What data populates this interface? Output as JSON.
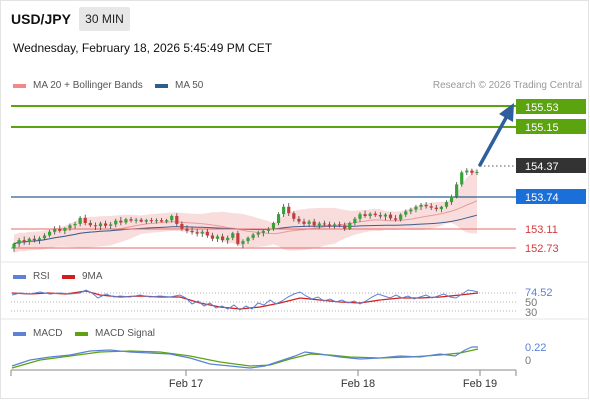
{
  "header": {
    "pair": "USD/JPY",
    "timeframe": "30 MIN",
    "datetime": "Wednesday, February 18, 2026 5:45:49 PM CET",
    "copyright": "Research © 2026 Trading Central"
  },
  "legend": {
    "ma20": "MA 20 + Bollinger Bands",
    "ma50": "MA 50",
    "rsi": "RSI",
    "rsi_ma": "9MA",
    "macd": "MACD",
    "macd_signal": "MACD Signal"
  },
  "levels": {
    "resistance_2": "155.53",
    "resistance_1": "155.15",
    "last": "154.37",
    "pivot": "153.74",
    "support_1": "153.11",
    "support_2": "152.73"
  },
  "rsi_labels": {
    "current": "74.52",
    "mid": "50",
    "low": "30"
  },
  "macd_labels": {
    "current": "0.22",
    "zero": "0"
  },
  "colors": {
    "green": "#5ba30f",
    "blue_line": "#2d5f8e",
    "red_line": "#e66a6a",
    "arrow": "#2e5f9c",
    "last_box": "#333333",
    "pivot_box": "#1a6fd8",
    "candle_up": "#36a336",
    "candle_down": "#c83a3a",
    "band_fill": "#f6cfcf",
    "ma20": "#e99a9a",
    "ma50": "#3a5d8f",
    "rsi": "#5b82d4",
    "rsi_ma": "#d21e1e",
    "macd": "#5b82d4",
    "macd_signal": "#5ba30f"
  },
  "chart_data": {
    "type": "candlestick",
    "title": "USD/JPY 30 MIN",
    "x_ticks": [
      "Feb 17",
      "Feb 18",
      "Feb 19"
    ],
    "ylim": [
      152.58,
      155.92
    ],
    "candles": [
      [
        152.72,
        152.85,
        152.65,
        152.82
      ],
      [
        152.82,
        152.95,
        152.75,
        152.9
      ],
      [
        152.9,
        152.98,
        152.8,
        152.86
      ],
      [
        152.86,
        152.96,
        152.8,
        152.93
      ],
      [
        152.93,
        153.0,
        152.85,
        152.9
      ],
      [
        152.9,
        152.98,
        152.82,
        152.94
      ],
      [
        152.94,
        153.05,
        152.9,
        153.0
      ],
      [
        153.0,
        153.12,
        152.96,
        153.08
      ],
      [
        153.08,
        153.2,
        153.02,
        153.14
      ],
      [
        153.14,
        153.22,
        153.06,
        153.1
      ],
      [
        153.1,
        153.18,
        153.03,
        153.16
      ],
      [
        153.16,
        153.26,
        153.1,
        153.22
      ],
      [
        153.22,
        153.3,
        153.15,
        153.25
      ],
      [
        153.25,
        153.42,
        153.2,
        153.38
      ],
      [
        153.38,
        153.45,
        153.22,
        153.27
      ],
      [
        153.27,
        153.33,
        153.18,
        153.22
      ],
      [
        153.22,
        153.28,
        153.12,
        153.2
      ],
      [
        153.2,
        153.3,
        153.12,
        153.26
      ],
      [
        153.26,
        153.32,
        153.16,
        153.21
      ],
      [
        153.21,
        153.29,
        153.14,
        153.24
      ],
      [
        153.24,
        153.36,
        153.18,
        153.32
      ],
      [
        153.32,
        153.4,
        153.22,
        153.28
      ],
      [
        153.28,
        153.38,
        153.24,
        153.35
      ],
      [
        153.35,
        153.4,
        153.28,
        153.32
      ],
      [
        153.32,
        153.38,
        153.26,
        153.34
      ],
      [
        153.34,
        153.38,
        153.28,
        153.3
      ],
      [
        153.3,
        153.36,
        153.25,
        153.33
      ],
      [
        153.33,
        153.38,
        153.27,
        153.31
      ],
      [
        153.31,
        153.37,
        153.26,
        153.33
      ],
      [
        153.33,
        153.38,
        153.28,
        153.3
      ],
      [
        153.3,
        153.36,
        153.26,
        153.33
      ],
      [
        153.33,
        153.45,
        153.28,
        153.42
      ],
      [
        153.42,
        153.48,
        153.2,
        153.25
      ],
      [
        153.25,
        153.3,
        153.1,
        153.15
      ],
      [
        153.15,
        153.22,
        153.05,
        153.1
      ],
      [
        153.1,
        153.18,
        153.02,
        153.07
      ],
      [
        153.07,
        153.14,
        152.98,
        153.04
      ],
      [
        153.04,
        153.12,
        152.97,
        153.08
      ],
      [
        153.08,
        153.14,
        152.95,
        153.0
      ],
      [
        153.0,
        153.06,
        152.88,
        152.93
      ],
      [
        152.93,
        153.02,
        152.86,
        152.98
      ],
      [
        152.98,
        153.04,
        152.85,
        152.9
      ],
      [
        152.9,
        153.0,
        152.82,
        152.95
      ],
      [
        152.95,
        153.08,
        152.9,
        153.05
      ],
      [
        153.05,
        153.1,
        152.78,
        152.82
      ],
      [
        152.82,
        152.92,
        152.72,
        152.88
      ],
      [
        152.88,
        152.98,
        152.82,
        152.95
      ],
      [
        152.95,
        153.05,
        152.9,
        153.02
      ],
      [
        153.02,
        153.1,
        152.96,
        153.06
      ],
      [
        153.06,
        153.12,
        152.98,
        153.1
      ],
      [
        153.1,
        153.18,
        153.05,
        153.15
      ],
      [
        153.15,
        153.3,
        153.1,
        153.27
      ],
      [
        153.27,
        153.5,
        153.22,
        153.46
      ],
      [
        153.46,
        153.68,
        153.4,
        153.62
      ],
      [
        153.62,
        153.7,
        153.42,
        153.48
      ],
      [
        153.48,
        153.52,
        153.3,
        153.36
      ],
      [
        153.36,
        153.42,
        153.25,
        153.3
      ],
      [
        153.3,
        153.36,
        153.2,
        153.25
      ],
      [
        153.25,
        153.34,
        153.18,
        153.3
      ],
      [
        153.3,
        153.36,
        153.18,
        153.22
      ],
      [
        153.22,
        153.3,
        153.15,
        153.26
      ],
      [
        153.26,
        153.32,
        153.2,
        153.24
      ],
      [
        153.24,
        153.3,
        153.16,
        153.2
      ],
      [
        153.2,
        153.28,
        153.15,
        153.24
      ],
      [
        153.24,
        153.3,
        153.18,
        153.22
      ],
      [
        153.22,
        153.28,
        153.1,
        153.15
      ],
      [
        153.15,
        153.3,
        153.12,
        153.27
      ],
      [
        153.27,
        153.4,
        153.22,
        153.36
      ],
      [
        153.36,
        153.5,
        153.3,
        153.46
      ],
      [
        153.46,
        153.54,
        153.38,
        153.42
      ],
      [
        153.42,
        153.5,
        153.36,
        153.47
      ],
      [
        153.47,
        153.52,
        153.4,
        153.44
      ],
      [
        153.44,
        153.5,
        153.36,
        153.41
      ],
      [
        153.41,
        153.48,
        153.33,
        153.45
      ],
      [
        153.45,
        153.5,
        153.33,
        153.37
      ],
      [
        153.37,
        153.44,
        153.3,
        153.34
      ],
      [
        153.34,
        153.48,
        153.3,
        153.45
      ],
      [
        153.45,
        153.56,
        153.4,
        153.52
      ],
      [
        153.52,
        153.6,
        153.46,
        153.56
      ],
      [
        153.56,
        153.66,
        153.5,
        153.62
      ],
      [
        153.62,
        153.7,
        153.55,
        153.66
      ],
      [
        153.66,
        153.72,
        153.58,
        153.63
      ],
      [
        153.63,
        153.7,
        153.55,
        153.6
      ],
      [
        153.6,
        153.66,
        153.52,
        153.57
      ],
      [
        153.57,
        153.64,
        153.5,
        153.62
      ],
      [
        153.62,
        153.76,
        153.58,
        153.72
      ],
      [
        153.72,
        153.88,
        153.66,
        153.84
      ],
      [
        153.84,
        154.15,
        153.8,
        154.1
      ],
      [
        154.1,
        154.4,
        154.05,
        154.36
      ],
      [
        154.36,
        154.45,
        154.3,
        154.4
      ],
      [
        154.4,
        154.44,
        154.3,
        154.35
      ],
      [
        154.35,
        154.42,
        154.3,
        154.37
      ]
    ],
    "rsi": {
      "current": 74.52,
      "levels": [
        70,
        50,
        30
      ]
    },
    "macd": {
      "current": 0.22,
      "zero": 0
    }
  }
}
